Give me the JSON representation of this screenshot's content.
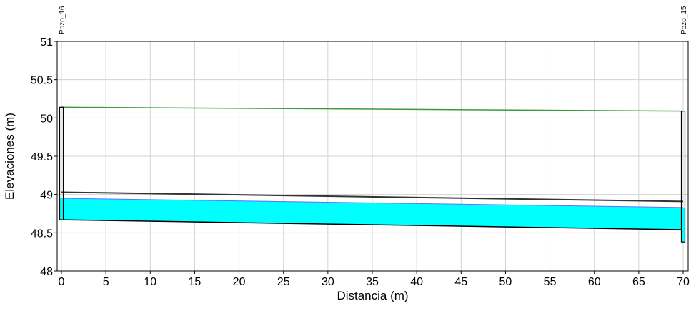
{
  "chart_data": {
    "type": "line",
    "title": "",
    "xlabel": "Distancia (m)",
    "ylabel": "Elevaciones (m)",
    "xlim": [
      0,
      70
    ],
    "ylim": [
      48,
      51
    ],
    "xticks": [
      "0",
      "5",
      "10",
      "15",
      "20",
      "25",
      "30",
      "35",
      "40",
      "45",
      "50",
      "55",
      "60",
      "65",
      "70"
    ],
    "yticks": [
      "48",
      "48.5",
      "49",
      "49.5",
      "50",
      "50.5",
      "51"
    ],
    "grid": true,
    "nodes": [
      {
        "name": "Pozo_16",
        "x": 0,
        "ground": 50.14,
        "bottom": 48.67
      },
      {
        "name": "Pozo_15",
        "x": 70,
        "ground": 50.09,
        "bottom": 48.38
      }
    ],
    "series": [
      {
        "role": "ground",
        "x": [
          0,
          70
        ],
        "values": [
          50.14,
          50.09
        ],
        "color": "#3c9a3c"
      },
      {
        "role": "crown",
        "x": [
          0,
          70
        ],
        "values": [
          49.03,
          48.91
        ],
        "color": "#333333"
      },
      {
        "role": "water",
        "x": [
          0,
          70
        ],
        "values": [
          48.95,
          48.83
        ],
        "color": "#00ffff"
      },
      {
        "role": "invert",
        "x": [
          0,
          70
        ],
        "values": [
          48.67,
          48.54
        ],
        "color": "#000000"
      }
    ],
    "colors": {
      "grid": "#d3d3d3",
      "water": "#00ffff",
      "ground": "#3c9a3c",
      "water_edge": "#6a6aff"
    }
  }
}
